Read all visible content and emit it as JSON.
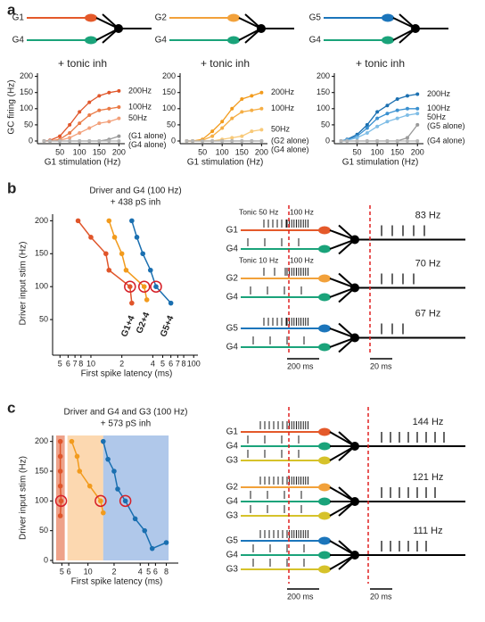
{
  "panel_labels": [
    "a",
    "b",
    "c"
  ],
  "chart_data": [
    {
      "type": "line",
      "annotation": "+ tonic inh",
      "ylabel": "GC firing (Hz)",
      "xlabel": "G1 stimulation (Hz)",
      "x": [
        10,
        25,
        50,
        75,
        100,
        125,
        150,
        175,
        200
      ],
      "xlim": [
        0,
        215
      ],
      "ylim": [
        0,
        210
      ],
      "xticks": [
        50,
        100,
        150,
        200
      ],
      "yticks": [
        0,
        50,
        100,
        150,
        200
      ],
      "series": [
        {
          "name": "200Hz",
          "color": "#e0562a",
          "values": [
            0,
            2,
            15,
            50,
            90,
            120,
            140,
            150,
            155
          ]
        },
        {
          "name": "100Hz",
          "color": "#ea7a45",
          "values": [
            0,
            0,
            5,
            25,
            55,
            80,
            95,
            100,
            105
          ]
        },
        {
          "name": "50Hz",
          "color": "#f2a07a",
          "values": [
            0,
            0,
            2,
            10,
            25,
            40,
            55,
            60,
            70
          ]
        },
        {
          "name": "(G1 alone)",
          "color": "#999999",
          "values": [
            0,
            0,
            0,
            0,
            0,
            0,
            0,
            5,
            15
          ]
        },
        {
          "name": "(G4 alone)",
          "color": "#b5b5b5",
          "values": [
            0,
            0,
            0,
            0,
            0,
            0,
            0,
            0,
            0
          ]
        }
      ]
    },
    {
      "type": "line",
      "annotation": "+ tonic inh",
      "xlabel": "G1 stimulation (Hz)",
      "x": [
        10,
        25,
        50,
        75,
        100,
        125,
        150,
        175,
        200
      ],
      "xlim": [
        0,
        215
      ],
      "ylim": [
        0,
        210
      ],
      "xticks": [
        50,
        100,
        150,
        200
      ],
      "yticks": [
        0,
        50,
        100,
        150,
        200
      ],
      "series": [
        {
          "name": "200Hz",
          "color": "#f29b1d",
          "values": [
            0,
            0,
            5,
            30,
            60,
            100,
            130,
            140,
            150
          ]
        },
        {
          "name": "100Hz",
          "color": "#f5ae45",
          "values": [
            0,
            0,
            2,
            15,
            40,
            70,
            90,
            95,
            100
          ]
        },
        {
          "name": "50Hz",
          "color": "#f8c978",
          "values": [
            0,
            0,
            0,
            0,
            5,
            10,
            15,
            30,
            35
          ]
        },
        {
          "name": "(G2 alone)",
          "color": "#999999",
          "values": [
            0,
            0,
            0,
            0,
            0,
            0,
            0,
            0,
            0
          ]
        },
        {
          "name": "(G4 alone)",
          "color": "#b5b5b5",
          "values": [
            0,
            0,
            0,
            0,
            0,
            0,
            0,
            0,
            0
          ]
        }
      ]
    },
    {
      "type": "line",
      "annotation": "+ tonic inh",
      "xlabel": "G1 stimulation (Hz)",
      "x": [
        10,
        25,
        50,
        75,
        100,
        125,
        150,
        175,
        200
      ],
      "xlim": [
        0,
        215
      ],
      "ylim": [
        0,
        210
      ],
      "xticks": [
        50,
        100,
        150,
        200
      ],
      "yticks": [
        0,
        50,
        100,
        150,
        200
      ],
      "series": [
        {
          "name": "200Hz",
          "color": "#1a6fb0",
          "values": [
            0,
            5,
            20,
            50,
            90,
            110,
            130,
            140,
            145
          ]
        },
        {
          "name": "100Hz",
          "color": "#3a90d0",
          "values": [
            0,
            3,
            15,
            40,
            70,
            85,
            95,
            100,
            100
          ]
        },
        {
          "name": "50Hz",
          "color": "#7fbde6",
          "values": [
            0,
            2,
            10,
            25,
            45,
            60,
            70,
            80,
            85
          ]
        },
        {
          "name": "(G5 alone)",
          "color": "#999999",
          "values": [
            0,
            0,
            0,
            0,
            0,
            0,
            0,
            10,
            50
          ]
        },
        {
          "name": "(G4 alone)",
          "color": "#b5b5b5",
          "values": [
            0,
            0,
            0,
            0,
            0,
            0,
            0,
            0,
            0
          ]
        }
      ]
    },
    {
      "type": "scatter",
      "title": "Driver and G4 (100 Hz)",
      "subtitle": "+ 438 pS inh",
      "ylabel": "Driver input stim (Hz)",
      "xlabel": "First spike latency (ms)",
      "xscale": "log",
      "xlim": [
        4.5,
        110
      ],
      "ylim": [
        0,
        210
      ],
      "yticks": [
        50,
        100,
        150,
        200
      ],
      "xticks": [
        5,
        6,
        7,
        8,
        10,
        {
          "value": 20,
          "label": "2"
        },
        {
          "value": 40,
          "label": "4"
        },
        {
          "value": 50,
          "label": "5"
        },
        {
          "value": 60,
          "label": "6"
        },
        {
          "value": 70,
          "label": "7"
        },
        {
          "value": 80,
          "label": "8"
        },
        100
      ],
      "series": [
        {
          "name": "G1+4",
          "color": "#e0552a",
          "x": [
            7.5,
            10,
            14,
            15,
            24,
            25
          ],
          "values": [
            200,
            175,
            150,
            125,
            100,
            75
          ],
          "circled": 4
        },
        {
          "name": "G2+4",
          "color": "#f29b1d",
          "x": [
            15,
            17,
            20,
            22,
            33,
            35
          ],
          "values": [
            200,
            175,
            150,
            125,
            100,
            80
          ],
          "circled": 4
        },
        {
          "name": "G5+4",
          "color": "#1a6fb0",
          "x": [
            25,
            28,
            32,
            38,
            43,
            60
          ],
          "values": [
            200,
            175,
            150,
            125,
            100,
            75
          ],
          "circled": 4
        }
      ]
    },
    {
      "type": "scatter",
      "title": "Driver and G4 and G3 (100 Hz)",
      "subtitle": "+ 573 pS inh",
      "ylabel": "Driver input stim (Hz)",
      "xlabel": "First spike latency (ms)",
      "xscale": "log",
      "xlim": [
        4.2,
        110
      ],
      "ylim": [
        0,
        210
      ],
      "yticks": [
        0,
        50,
        100,
        150,
        200
      ],
      "xticks": [
        5,
        6,
        10,
        {
          "value": 20,
          "label": "2"
        },
        {
          "value": 40,
          "label": "4"
        },
        {
          "value": 50,
          "label": "5"
        },
        {
          "value": 60,
          "label": "6"
        },
        {
          "value": 80,
          "label": "8"
        }
      ],
      "bands": [
        {
          "from": 4.3,
          "to": 5.4,
          "color": "#e0552a"
        },
        {
          "from": 5.8,
          "to": 15,
          "color": "#f9b870"
        },
        {
          "from": 15,
          "to": 85,
          "color": "#6f9ad8"
        }
      ],
      "series": [
        {
          "color": "#e0552a",
          "x": [
            4.8,
            4.8,
            4.8,
            4.8,
            4.9,
            4.8
          ],
          "values": [
            200,
            175,
            150,
            125,
            100,
            75
          ],
          "circled": 4
        },
        {
          "color": "#f29b1d",
          "x": [
            6.5,
            7.5,
            8,
            10.5,
            14,
            15
          ],
          "values": [
            200,
            175,
            150,
            125,
            100,
            80
          ],
          "circled": 4
        },
        {
          "color": "#1a6fb0",
          "x": [
            15,
            17,
            20,
            22,
            27,
            35,
            45,
            55,
            80
          ],
          "values": [
            200,
            170,
            150,
            120,
            100,
            70,
            50,
            20,
            30
          ],
          "circled": 4
        }
      ]
    }
  ],
  "diagrams": {
    "a": [
      {
        "inputs": [
          {
            "label": "G1",
            "color": "#e4592a"
          },
          {
            "label": "G4",
            "color": "#1aa37a"
          }
        ]
      },
      {
        "inputs": [
          {
            "label": "G2",
            "color": "#f2a13a"
          },
          {
            "label": "G4",
            "color": "#1aa37a"
          }
        ]
      },
      {
        "inputs": [
          {
            "label": "G5",
            "color": "#1b75bb"
          },
          {
            "label": "G4",
            "color": "#1aa37a"
          }
        ]
      }
    ],
    "b": {
      "rows": [
        {
          "inputs": [
            {
              "label": "G1",
              "color": "#e4592a"
            },
            {
              "label": "G4",
              "color": "#1aa37a"
            }
          ],
          "tonic": "Tonic 50 Hz",
          "burst": "100 Hz",
          "rate": "83 Hz"
        },
        {
          "inputs": [
            {
              "label": "G2",
              "color": "#f2a13a"
            },
            {
              "label": "G4",
              "color": "#1aa37a"
            }
          ],
          "tonic": "Tonic 10 Hz",
          "burst": "100 Hz",
          "rate": "70 Hz"
        },
        {
          "inputs": [
            {
              "label": "G5",
              "color": "#1b75bb"
            },
            {
              "label": "G4",
              "color": "#1aa37a"
            }
          ],
          "rate": "67 Hz"
        }
      ],
      "scale_long": "200 ms",
      "scale_short": "20 ms"
    },
    "c": {
      "rows": [
        {
          "inputs": [
            {
              "label": "G1",
              "color": "#e4592a"
            },
            {
              "label": "G4",
              "color": "#1aa37a"
            },
            {
              "label": "G3",
              "color": "#d6c22a"
            }
          ],
          "rate": "144 Hz"
        },
        {
          "inputs": [
            {
              "label": "G2",
              "color": "#f2a13a"
            },
            {
              "label": "G4",
              "color": "#1aa37a"
            },
            {
              "label": "G3",
              "color": "#d6c22a"
            }
          ],
          "rate": "121 Hz"
        },
        {
          "inputs": [
            {
              "label": "G5",
              "color": "#1b75bb"
            },
            {
              "label": "G4",
              "color": "#1aa37a"
            },
            {
              "label": "G3",
              "color": "#d6c22a"
            }
          ],
          "rate": "111 Hz"
        }
      ],
      "scale_long": "200 ms",
      "scale_short": "20 ms"
    }
  }
}
